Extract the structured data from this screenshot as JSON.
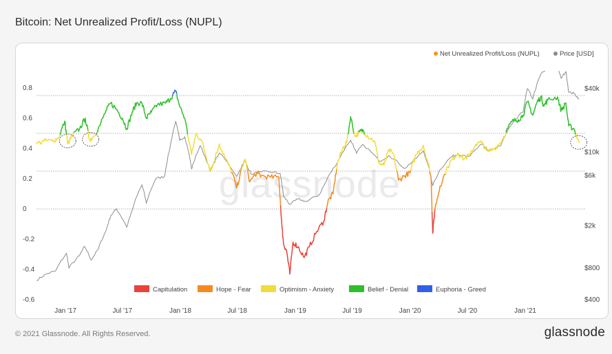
{
  "title": "Bitcoin: Net Unrealized Profit/Loss (NUPL)",
  "footer": {
    "copyright": "© 2021 Glassnode. All Rights Reserved.",
    "logo": "glassnode"
  },
  "watermark": "glassnode",
  "chart_data": {
    "type": "line",
    "title": "Bitcoin: Net Unrealized Profit/Loss (NUPL)",
    "x_ticks": [
      "Jan '17",
      "Jul '17",
      "Jan '18",
      "Jul '18",
      "Jan '19",
      "Jul '19",
      "Jan '20",
      "Jul '20",
      "Jan '21"
    ],
    "y_left": {
      "ticks": [
        0.8,
        0.6,
        0.4,
        0.2,
        0,
        -0.2,
        -0.4,
        -0.6
      ],
      "range": [
        -0.6,
        0.8
      ]
    },
    "y_right": {
      "scale": "log",
      "ticks": [
        "$40k",
        "$10k",
        "$6k",
        "$2k",
        "$800",
        "$400"
      ],
      "values": [
        40000,
        10000,
        6000,
        2000,
        800,
        400
      ]
    },
    "top_legend": [
      {
        "label": "Net Unrealized Profit/Loss (NUPL)",
        "color": "#f7931a"
      },
      {
        "label": "Price [USD]",
        "color": "#8a8a8a"
      }
    ],
    "zones": [
      {
        "label": "Capitulation",
        "color": "#e8423a",
        "max": 0
      },
      {
        "label": "Hope - Fear",
        "color": "#f58a1f",
        "max": 0.25
      },
      {
        "label": "Optimism - Anxiety",
        "color": "#f2dc3c",
        "max": 0.5
      },
      {
        "label": "Belief - Denial",
        "color": "#2ebf2b",
        "max": 0.75
      },
      {
        "label": "Euphoria - Greed",
        "color": "#3060e8",
        "max": 1
      }
    ],
    "reference_lines": [
      0.75,
      0.5,
      0.25,
      0
    ],
    "x_range": [
      "2016-10-01",
      "2021-06-25"
    ],
    "series": [
      {
        "name": "Net Unrealized Profit/Loss (NUPL)",
        "points": [
          [
            "2016-10-01",
            0.43
          ],
          [
            "2016-10-25",
            0.45
          ],
          [
            "2016-11-20",
            0.45
          ],
          [
            "2016-12-10",
            0.47
          ],
          [
            "2016-12-30",
            0.58
          ],
          [
            "2017-01-08",
            0.43
          ],
          [
            "2017-01-25",
            0.49
          ],
          [
            "2017-02-15",
            0.53
          ],
          [
            "2017-03-05",
            0.6
          ],
          [
            "2017-03-18",
            0.46
          ],
          [
            "2017-03-28",
            0.47
          ],
          [
            "2017-04-20",
            0.55
          ],
          [
            "2017-05-10",
            0.65
          ],
          [
            "2017-05-25",
            0.7
          ],
          [
            "2017-06-12",
            0.66
          ],
          [
            "2017-07-01",
            0.6
          ],
          [
            "2017-07-15",
            0.53
          ],
          [
            "2017-08-01",
            0.64
          ],
          [
            "2017-08-15",
            0.7
          ],
          [
            "2017-09-01",
            0.7
          ],
          [
            "2017-09-15",
            0.6
          ],
          [
            "2017-10-01",
            0.64
          ],
          [
            "2017-10-20",
            0.69
          ],
          [
            "2017-11-15",
            0.7
          ],
          [
            "2017-12-01",
            0.73
          ],
          [
            "2017-12-17",
            0.78
          ],
          [
            "2017-12-30",
            0.68
          ],
          [
            "2018-01-15",
            0.6
          ],
          [
            "2018-02-06",
            0.36
          ],
          [
            "2018-02-20",
            0.5
          ],
          [
            "2018-03-10",
            0.45
          ],
          [
            "2018-04-01",
            0.29
          ],
          [
            "2018-04-10",
            0.26
          ],
          [
            "2018-05-05",
            0.43
          ],
          [
            "2018-05-25",
            0.33
          ],
          [
            "2018-06-15",
            0.24
          ],
          [
            "2018-06-29",
            0.14
          ],
          [
            "2018-07-15",
            0.26
          ],
          [
            "2018-07-25",
            0.33
          ],
          [
            "2018-08-10",
            0.18
          ],
          [
            "2018-09-01",
            0.24
          ],
          [
            "2018-09-15",
            0.22
          ],
          [
            "2018-10-15",
            0.21
          ],
          [
            "2018-11-10",
            0.21
          ],
          [
            "2018-11-20",
            -0.12
          ],
          [
            "2018-11-25",
            -0.23
          ],
          [
            "2018-12-05",
            -0.28
          ],
          [
            "2018-12-15",
            -0.43
          ],
          [
            "2018-12-25",
            -0.22
          ],
          [
            "2019-01-10",
            -0.25
          ],
          [
            "2019-01-30",
            -0.32
          ],
          [
            "2019-02-15",
            -0.25
          ],
          [
            "2019-03-10",
            -0.15
          ],
          [
            "2019-04-02",
            -0.08
          ],
          [
            "2019-04-15",
            0.05
          ],
          [
            "2019-05-01",
            0.1
          ],
          [
            "2019-05-15",
            0.3
          ],
          [
            "2019-06-01",
            0.4
          ],
          [
            "2019-06-15",
            0.45
          ],
          [
            "2019-06-26",
            0.61
          ],
          [
            "2019-07-10",
            0.48
          ],
          [
            "2019-07-25",
            0.51
          ],
          [
            "2019-08-05",
            0.52
          ],
          [
            "2019-08-20",
            0.48
          ],
          [
            "2019-09-10",
            0.45
          ],
          [
            "2019-09-25",
            0.3
          ],
          [
            "2019-10-10",
            0.29
          ],
          [
            "2019-10-26",
            0.39
          ],
          [
            "2019-11-10",
            0.36
          ],
          [
            "2019-11-25",
            0.19
          ],
          [
            "2019-12-15",
            0.22
          ],
          [
            "2020-01-01",
            0.24
          ],
          [
            "2020-01-20",
            0.36
          ],
          [
            "2020-02-12",
            0.42
          ],
          [
            "2020-02-28",
            0.3
          ],
          [
            "2020-03-08",
            0.2
          ],
          [
            "2020-03-13",
            -0.16
          ],
          [
            "2020-03-20",
            0.0
          ],
          [
            "2020-04-05",
            0.15
          ],
          [
            "2020-04-30",
            0.28
          ],
          [
            "2020-05-15",
            0.33
          ],
          [
            "2020-06-01",
            0.37
          ],
          [
            "2020-06-20",
            0.33
          ],
          [
            "2020-07-10",
            0.36
          ],
          [
            "2020-07-28",
            0.43
          ],
          [
            "2020-08-15",
            0.44
          ],
          [
            "2020-09-05",
            0.38
          ],
          [
            "2020-09-25",
            0.4
          ],
          [
            "2020-10-15",
            0.44
          ],
          [
            "2020-11-01",
            0.51
          ],
          [
            "2020-11-20",
            0.58
          ],
          [
            "2020-12-10",
            0.59
          ],
          [
            "2020-12-25",
            0.62
          ],
          [
            "2021-01-08",
            0.71
          ],
          [
            "2021-01-25",
            0.62
          ],
          [
            "2021-02-08",
            0.71
          ],
          [
            "2021-02-21",
            0.74
          ],
          [
            "2021-03-01",
            0.68
          ],
          [
            "2021-03-13",
            0.72
          ],
          [
            "2021-04-14",
            0.74
          ],
          [
            "2021-04-25",
            0.65
          ],
          [
            "2021-05-10",
            0.7
          ],
          [
            "2021-05-19",
            0.55
          ],
          [
            "2021-06-05",
            0.53
          ],
          [
            "2021-06-21",
            0.44
          ]
        ]
      },
      {
        "name": "Price [USD]",
        "points": [
          [
            "2016-10-01",
            610
          ],
          [
            "2016-11-01",
            700
          ],
          [
            "2016-12-01",
            750
          ],
          [
            "2017-01-04",
            1100
          ],
          [
            "2017-01-12",
            800
          ],
          [
            "2017-02-15",
            1050
          ],
          [
            "2017-03-03",
            1280
          ],
          [
            "2017-03-24",
            950
          ],
          [
            "2017-04-15",
            1200
          ],
          [
            "2017-05-10",
            1800
          ],
          [
            "2017-05-25",
            2500
          ],
          [
            "2017-06-12",
            2900
          ],
          [
            "2017-07-15",
            1950
          ],
          [
            "2017-08-01",
            2800
          ],
          [
            "2017-09-01",
            4900
          ],
          [
            "2017-09-15",
            3300
          ],
          [
            "2017-10-15",
            5600
          ],
          [
            "2017-11-12",
            5900
          ],
          [
            "2017-11-29",
            10900
          ],
          [
            "2017-12-17",
            19500
          ],
          [
            "2017-12-30",
            13000
          ],
          [
            "2018-01-15",
            14000
          ],
          [
            "2018-02-06",
            6900
          ],
          [
            "2018-03-05",
            11500
          ],
          [
            "2018-04-06",
            6600
          ],
          [
            "2018-05-05",
            9800
          ],
          [
            "2018-06-29",
            5900
          ],
          [
            "2018-07-25",
            8200
          ],
          [
            "2018-08-14",
            6200
          ],
          [
            "2018-09-15",
            6500
          ],
          [
            "2018-10-15",
            6500
          ],
          [
            "2018-11-14",
            6300
          ],
          [
            "2018-11-25",
            3800
          ],
          [
            "2018-12-15",
            3200
          ],
          [
            "2019-01-10",
            3600
          ],
          [
            "2019-02-07",
            3400
          ],
          [
            "2019-03-20",
            4000
          ],
          [
            "2019-04-05",
            5000
          ],
          [
            "2019-05-15",
            8000
          ],
          [
            "2019-06-26",
            13000
          ],
          [
            "2019-07-15",
            9800
          ],
          [
            "2019-08-05",
            11800
          ],
          [
            "2019-09-25",
            8200
          ],
          [
            "2019-10-26",
            9300
          ],
          [
            "2019-12-15",
            7000
          ],
          [
            "2020-01-20",
            8700
          ],
          [
            "2020-02-12",
            10300
          ],
          [
            "2020-03-13",
            4800
          ],
          [
            "2020-04-05",
            6800
          ],
          [
            "2020-05-10",
            9000
          ],
          [
            "2020-06-01",
            9600
          ],
          [
            "2020-07-10",
            9200
          ],
          [
            "2020-08-15",
            11900
          ],
          [
            "2020-09-05",
            10200
          ],
          [
            "2020-10-15",
            11500
          ],
          [
            "2020-11-20",
            18500
          ],
          [
            "2020-12-25",
            24000
          ],
          [
            "2021-01-08",
            40000
          ],
          [
            "2021-01-25",
            32000
          ],
          [
            "2021-02-21",
            56000
          ],
          [
            "2021-03-13",
            61000
          ],
          [
            "2021-04-14",
            63000
          ],
          [
            "2021-04-25",
            50000
          ],
          [
            "2021-05-10",
            58000
          ],
          [
            "2021-05-19",
            37000
          ],
          [
            "2021-06-05",
            36000
          ],
          [
            "2021-06-21",
            32000
          ]
        ]
      }
    ]
  }
}
